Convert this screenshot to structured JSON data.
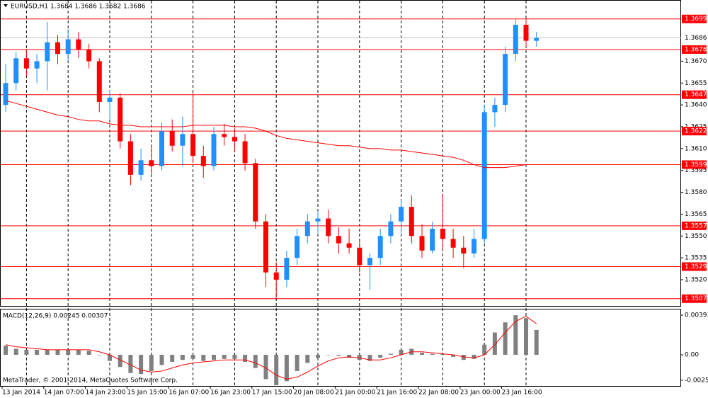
{
  "footer": "MetaTrader, © 2001-2014, MetaQuotes Software Corp.",
  "chart_data": [
    {
      "type": "candlestick",
      "title": "EURUSD,H1  1.3684 1.3686 1.3682 1.3686",
      "categories": [
        "13 Jan 2014",
        null,
        null,
        null,
        "14 Jan 07:00",
        null,
        null,
        null,
        "14 Jan 23:00",
        null,
        null,
        null,
        "15 Jan 15:00",
        null,
        null,
        null,
        "16 Jan 07:00",
        null,
        null,
        null,
        "16 Jan 23:00",
        null,
        null,
        null,
        "17 Jan 15:00",
        null,
        null,
        null,
        "20 Jan 08:00",
        null,
        null,
        null,
        "21 Jan 00:00",
        null,
        null,
        null,
        "21 Jan 16:00",
        null,
        null,
        null,
        "22 Jan 08:00",
        null,
        null,
        null,
        "23 Jan 00:00",
        null,
        null,
        null,
        "23 Jan 16:00",
        null,
        null,
        null
      ],
      "open": [
        1.364,
        1.3655,
        1.3672,
        1.3665,
        1.367,
        1.3683,
        1.3675,
        1.3685,
        1.3678,
        1.367,
        1.3642,
        1.3645,
        1.3615,
        1.3592,
        1.3602,
        1.3598,
        1.3622,
        1.3612,
        1.362,
        1.3605,
        1.3598,
        1.362,
        1.3618,
        1.3615,
        1.36,
        1.356,
        1.3525,
        1.352,
        1.3535,
        1.355,
        1.356,
        1.3562,
        1.355,
        1.3545,
        1.3542,
        1.353,
        1.3535,
        1.355,
        1.356,
        1.357,
        1.355,
        1.354,
        1.3555,
        1.3548,
        1.3542,
        1.3538,
        1.3548,
        1.3635,
        1.364,
        1.3675,
        1.3695,
        1.3684
      ],
      "high": [
        1.3668,
        1.3676,
        1.3678,
        1.3675,
        1.3697,
        1.3688,
        1.3692,
        1.369,
        1.3682,
        1.3672,
        1.365,
        1.3648,
        1.362,
        1.361,
        1.3612,
        1.3628,
        1.363,
        1.3632,
        1.3648,
        1.3612,
        1.3625,
        1.3627,
        1.3624,
        1.362,
        1.3603,
        1.3565,
        1.3532,
        1.354,
        1.3555,
        1.3565,
        1.3567,
        1.3568,
        1.3556,
        1.3555,
        1.3548,
        1.3538,
        1.3555,
        1.3565,
        1.3575,
        1.3578,
        1.3558,
        1.356,
        1.3578,
        1.3555,
        1.355,
        1.3555,
        1.364,
        1.3645,
        1.368,
        1.3699,
        1.3699,
        1.369
      ],
      "low": [
        1.3635,
        1.365,
        1.366,
        1.3655,
        1.365,
        1.3668,
        1.367,
        1.3672,
        1.3665,
        1.3635,
        1.363,
        1.361,
        1.3585,
        1.3588,
        1.3592,
        1.3595,
        1.3608,
        1.3598,
        1.36,
        1.359,
        1.3595,
        1.3612,
        1.3608,
        1.3595,
        1.3555,
        1.3515,
        1.3507,
        1.3515,
        1.353,
        1.3545,
        1.3552,
        1.3545,
        1.3538,
        1.3538,
        1.3525,
        1.3513,
        1.353,
        1.3545,
        1.3552,
        1.3545,
        1.3535,
        1.3538,
        1.354,
        1.3535,
        1.3528,
        1.3535,
        1.3545,
        1.3625,
        1.3635,
        1.367,
        1.368,
        1.368
      ],
      "close": [
        1.3655,
        1.3672,
        1.3665,
        1.367,
        1.3683,
        1.3675,
        1.3685,
        1.3678,
        1.367,
        1.3642,
        1.3645,
        1.3615,
        1.3592,
        1.3602,
        1.3598,
        1.3622,
        1.3612,
        1.362,
        1.3605,
        1.3598,
        1.362,
        1.3618,
        1.3615,
        1.36,
        1.356,
        1.3525,
        1.352,
        1.3535,
        1.355,
        1.356,
        1.3562,
        1.355,
        1.3545,
        1.3542,
        1.353,
        1.3535,
        1.355,
        1.356,
        1.357,
        1.355,
        1.354,
        1.3555,
        1.3548,
        1.3542,
        1.3538,
        1.3548,
        1.3635,
        1.364,
        1.3675,
        1.3695,
        1.3684,
        1.3686
      ],
      "up_color": "#1e90ff",
      "down_color": "#ff0000",
      "ma": {
        "color": "#ff0000",
        "values": [
          1.3643,
          1.3641,
          1.3639,
          1.3637,
          1.3635,
          1.3633,
          1.3632,
          1.363,
          1.3629,
          1.3629,
          1.3627,
          1.3626,
          1.3626,
          1.3625,
          1.3625,
          1.3625,
          1.3625,
          1.3625,
          1.3626,
          1.3626,
          1.3626,
          1.3626,
          1.3625,
          1.3625,
          1.3624,
          1.3622,
          1.3619,
          1.3617,
          1.3616,
          1.3615,
          1.3614,
          1.3613,
          1.3612,
          1.3612,
          1.3611,
          1.361,
          1.361,
          1.3609,
          1.3609,
          1.3608,
          1.3607,
          1.3606,
          1.3605,
          1.3604,
          1.3602,
          1.3599,
          1.3597,
          1.3597,
          1.3597,
          1.3598,
          1.3599,
          1.3599
        ]
      },
      "levels": [
        1.3699,
        1.3678,
        1.3647,
        1.3622,
        1.3599,
        1.3557,
        1.3529,
        1.3507
      ],
      "level_color": "#ff0000",
      "current_price": 1.3686,
      "ylim": [
        1.3502,
        1.3712
      ],
      "yticks": [
        {
          "value": 1.367,
          "label": "1.3670"
        },
        1.3655,
        {
          "value": 1.364,
          "label": "1.3640"
        },
        1.3625,
        {
          "value": 1.361,
          "label": "1.3610"
        },
        1.3595,
        {
          "value": 1.358,
          "label": "1.3580"
        },
        1.3565,
        {
          "value": 1.355,
          "label": "1.3550"
        },
        1.3535,
        {
          "value": 1.352,
          "label": "1.3520"
        }
      ],
      "grid": true
    },
    {
      "type": "macd",
      "title": "MACD(12,26,9) 0.00245 0.00307",
      "series": [
        {
          "color": "#808080",
          "values": [
            0.0009,
            0.0006,
            0.0005,
            0.0005,
            0.0005,
            0.0005,
            0.0005,
            0.0005,
            0.0004,
            0.0,
            -0.0006,
            -0.0012,
            -0.0018,
            -0.0019,
            -0.0016,
            -0.001,
            -0.0007,
            -0.0005,
            -0.0004,
            -0.0006,
            -0.0005,
            -0.0004,
            -0.0004,
            -0.0007,
            -0.0013,
            -0.0024,
            -0.003,
            -0.0026,
            -0.0016,
            -0.0008,
            -0.0003,
            0.0,
            -0.0001,
            -0.0003,
            -0.0005,
            -0.0006,
            -0.0003,
            0.0001,
            0.0005,
            0.0006,
            0.0002,
            0.0001,
            0.0001,
            -0.0002,
            -0.0005,
            -0.0004,
            0.001,
            0.0022,
            0.0032,
            0.0039,
            0.0036,
            0.00245
          ]
        },
        {
          "color": "#ff0000",
          "values": [
            0.001,
            0.0008,
            0.0007,
            0.0006,
            0.0005,
            0.0005,
            0.0005,
            0.0005,
            0.0005,
            0.0003,
            0.0,
            -0.0005,
            -0.001,
            -0.0015,
            -0.0017,
            -0.0016,
            -0.0013,
            -0.001,
            -0.0008,
            -0.0007,
            -0.0006,
            -0.0005,
            -0.0005,
            -0.0005,
            -0.0008,
            -0.0013,
            -0.002,
            -0.0024,
            -0.0022,
            -0.0017,
            -0.0011,
            -0.0006,
            -0.0003,
            -0.0002,
            -0.0003,
            -0.0005,
            -0.0005,
            -0.0003,
            0.0,
            0.0003,
            0.0003,
            0.0002,
            0.0001,
            0.0,
            -0.0002,
            -0.0003,
            0.0,
            0.001,
            0.0022,
            0.0033,
            0.0038,
            0.00307
          ]
        }
      ],
      "ylim": [
        -0.00307,
        0.00447
      ],
      "yticks": [
        0.00391,
        {
          "value": 0,
          "label": "0.00"
        },
        -0.0025
      ]
    }
  ]
}
